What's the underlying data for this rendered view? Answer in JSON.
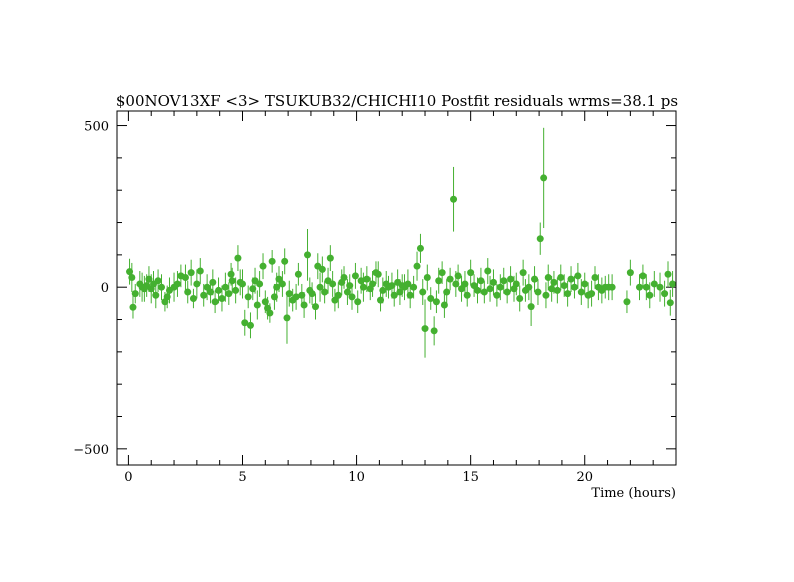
{
  "chart_data": {
    "type": "scatter",
    "title": "$00NOV13XF <3> TSUKUB32/CHICHI10 Postfit residuals wrms=38.1  ps",
    "xlabel": "Time (hours)",
    "ylabel": "",
    "xlim": [
      -0.5,
      24.0
    ],
    "ylim": [
      -550,
      545
    ],
    "x_ticks": [
      0,
      5,
      10,
      15,
      20
    ],
    "y_ticks": [
      -500,
      0,
      500
    ],
    "grid": false,
    "legend": "none",
    "colors": {
      "marker": "#44b030",
      "axis": "#000000"
    },
    "series": [
      {
        "points": [
          {
            "x": 0.05,
            "y": 48,
            "e": 40
          },
          {
            "x": 0.15,
            "y": 30,
            "e": 45
          },
          {
            "x": 0.2,
            "y": -62,
            "e": 35
          },
          {
            "x": 0.3,
            "y": -20,
            "e": 30
          },
          {
            "x": 0.5,
            "y": 10,
            "e": 40
          },
          {
            "x": 0.6,
            "y": 0,
            "e": 45
          },
          {
            "x": 0.7,
            "y": -5,
            "e": 40
          },
          {
            "x": 0.8,
            "y": 5,
            "e": 35
          },
          {
            "x": 0.9,
            "y": 25,
            "e": 40
          },
          {
            "x": 1.0,
            "y": -5,
            "e": 45
          },
          {
            "x": 1.1,
            "y": 10,
            "e": 40
          },
          {
            "x": 1.2,
            "y": -25,
            "e": 40
          },
          {
            "x": 1.3,
            "y": 20,
            "e": 35
          },
          {
            "x": 1.45,
            "y": 0,
            "e": 40
          },
          {
            "x": 1.6,
            "y": -45,
            "e": 30
          },
          {
            "x": 1.7,
            "y": -30,
            "e": 35
          },
          {
            "x": 1.8,
            "y": -10,
            "e": 40
          },
          {
            "x": 2.0,
            "y": 0,
            "e": 45
          },
          {
            "x": 2.15,
            "y": 10,
            "e": 40
          },
          {
            "x": 2.3,
            "y": 35,
            "e": 35
          },
          {
            "x": 2.5,
            "y": 30,
            "e": 40
          },
          {
            "x": 2.6,
            "y": -15,
            "e": 35
          },
          {
            "x": 2.75,
            "y": 45,
            "e": 40
          },
          {
            "x": 2.85,
            "y": -35,
            "e": 30
          },
          {
            "x": 3.0,
            "y": 10,
            "e": 45
          },
          {
            "x": 3.15,
            "y": 50,
            "e": 40
          },
          {
            "x": 3.3,
            "y": -25,
            "e": 35
          },
          {
            "x": 3.45,
            "y": 0,
            "e": 40
          },
          {
            "x": 3.6,
            "y": -15,
            "e": 35
          },
          {
            "x": 3.7,
            "y": 15,
            "e": 40
          },
          {
            "x": 3.8,
            "y": -45,
            "e": 35
          },
          {
            "x": 3.95,
            "y": -10,
            "e": 40
          },
          {
            "x": 4.1,
            "y": -35,
            "e": 40
          },
          {
            "x": 4.25,
            "y": 0,
            "e": 45
          },
          {
            "x": 4.4,
            "y": -20,
            "e": 35
          },
          {
            "x": 4.5,
            "y": 40,
            "e": 35
          },
          {
            "x": 4.55,
            "y": 20,
            "e": 40
          },
          {
            "x": 4.7,
            "y": -10,
            "e": 40
          },
          {
            "x": 4.8,
            "y": 90,
            "e": 40
          },
          {
            "x": 4.9,
            "y": 15,
            "e": 40
          },
          {
            "x": 5.0,
            "y": 10,
            "e": 45
          },
          {
            "x": 5.1,
            "y": -110,
            "e": 40
          },
          {
            "x": 5.25,
            "y": -30,
            "e": 35
          },
          {
            "x": 5.35,
            "y": -118,
            "e": 40
          },
          {
            "x": 5.45,
            "y": -5,
            "e": 35
          },
          {
            "x": 5.55,
            "y": 20,
            "e": 40
          },
          {
            "x": 5.65,
            "y": -55,
            "e": 45
          },
          {
            "x": 5.75,
            "y": 10,
            "e": 40
          },
          {
            "x": 5.9,
            "y": 65,
            "e": 40
          },
          {
            "x": 6.0,
            "y": -45,
            "e": 35
          },
          {
            "x": 6.1,
            "y": -65,
            "e": 35
          },
          {
            "x": 6.2,
            "y": -80,
            "e": 30
          },
          {
            "x": 6.3,
            "y": 80,
            "e": 35
          },
          {
            "x": 6.4,
            "y": -30,
            "e": 40
          },
          {
            "x": 6.5,
            "y": 0,
            "e": 45
          },
          {
            "x": 6.6,
            "y": 25,
            "e": 40
          },
          {
            "x": 6.75,
            "y": 10,
            "e": 40
          },
          {
            "x": 6.85,
            "y": 80,
            "e": 40
          },
          {
            "x": 6.95,
            "y": -95,
            "e": 80
          },
          {
            "x": 7.05,
            "y": -20,
            "e": 40
          },
          {
            "x": 7.2,
            "y": -40,
            "e": 35
          },
          {
            "x": 7.35,
            "y": -30,
            "e": 40
          },
          {
            "x": 7.45,
            "y": 40,
            "e": 35
          },
          {
            "x": 7.6,
            "y": -25,
            "e": 35
          },
          {
            "x": 7.7,
            "y": -55,
            "e": 40
          },
          {
            "x": 7.85,
            "y": 100,
            "e": 80
          },
          {
            "x": 7.95,
            "y": -10,
            "e": 40
          },
          {
            "x": 8.05,
            "y": -20,
            "e": 35
          },
          {
            "x": 8.2,
            "y": -60,
            "e": 40
          },
          {
            "x": 8.3,
            "y": 65,
            "e": 40
          },
          {
            "x": 8.4,
            "y": 0,
            "e": 45
          },
          {
            "x": 8.5,
            "y": 55,
            "e": 40
          },
          {
            "x": 8.6,
            "y": -15,
            "e": 35
          },
          {
            "x": 8.75,
            "y": 20,
            "e": 40
          },
          {
            "x": 8.85,
            "y": 90,
            "e": 40
          },
          {
            "x": 8.95,
            "y": 10,
            "e": 40
          },
          {
            "x": 9.05,
            "y": -40,
            "e": 35
          },
          {
            "x": 9.2,
            "y": -25,
            "e": 40
          },
          {
            "x": 9.35,
            "y": 15,
            "e": 40
          },
          {
            "x": 9.45,
            "y": 30,
            "e": 35
          },
          {
            "x": 9.6,
            "y": -15,
            "e": 40
          },
          {
            "x": 9.7,
            "y": 5,
            "e": 35
          },
          {
            "x": 9.8,
            "y": -30,
            "e": 40
          },
          {
            "x": 9.95,
            "y": 35,
            "e": 40
          },
          {
            "x": 10.05,
            "y": -45,
            "e": 35
          },
          {
            "x": 10.2,
            "y": 20,
            "e": 40
          },
          {
            "x": 10.3,
            "y": 0,
            "e": 45
          },
          {
            "x": 10.45,
            "y": 25,
            "e": 40
          },
          {
            "x": 10.6,
            "y": -5,
            "e": 35
          },
          {
            "x": 10.7,
            "y": 10,
            "e": 40
          },
          {
            "x": 10.85,
            "y": 45,
            "e": 35
          },
          {
            "x": 10.95,
            "y": 40,
            "e": 40
          },
          {
            "x": 11.05,
            "y": -40,
            "e": 35
          },
          {
            "x": 11.15,
            "y": -10,
            "e": 40
          },
          {
            "x": 11.3,
            "y": 10,
            "e": 40
          },
          {
            "x": 11.4,
            "y": 0,
            "e": 35
          },
          {
            "x": 11.55,
            "y": 5,
            "e": 40
          },
          {
            "x": 11.65,
            "y": -25,
            "e": 35
          },
          {
            "x": 11.8,
            "y": 15,
            "e": 40
          },
          {
            "x": 11.9,
            "y": -15,
            "e": 40
          },
          {
            "x": 12.0,
            "y": 5,
            "e": 35
          },
          {
            "x": 12.1,
            "y": 0,
            "e": 40
          },
          {
            "x": 12.25,
            "y": 10,
            "e": 45
          },
          {
            "x": 12.35,
            "y": -25,
            "e": 40
          },
          {
            "x": 12.5,
            "y": 0,
            "e": 35
          },
          {
            "x": 12.65,
            "y": 65,
            "e": 45
          },
          {
            "x": 12.8,
            "y": 120,
            "e": 45
          },
          {
            "x": 12.9,
            "y": -15,
            "e": 40
          },
          {
            "x": 13.0,
            "y": -128,
            "e": 90
          },
          {
            "x": 13.1,
            "y": 30,
            "e": 40
          },
          {
            "x": 13.25,
            "y": -35,
            "e": 35
          },
          {
            "x": 13.4,
            "y": -135,
            "e": 45
          },
          {
            "x": 13.5,
            "y": -45,
            "e": 35
          },
          {
            "x": 13.6,
            "y": 20,
            "e": 40
          },
          {
            "x": 13.75,
            "y": 45,
            "e": 35
          },
          {
            "x": 13.85,
            "y": -55,
            "e": 40
          },
          {
            "x": 13.95,
            "y": -15,
            "e": 40
          },
          {
            "x": 14.1,
            "y": 25,
            "e": 35
          },
          {
            "x": 14.25,
            "y": 272,
            "e": 100
          },
          {
            "x": 14.35,
            "y": 10,
            "e": 40
          },
          {
            "x": 14.45,
            "y": 35,
            "e": 35
          },
          {
            "x": 14.6,
            "y": -5,
            "e": 40
          },
          {
            "x": 14.75,
            "y": 10,
            "e": 40
          },
          {
            "x": 14.85,
            "y": -25,
            "e": 35
          },
          {
            "x": 15.0,
            "y": 45,
            "e": 40
          },
          {
            "x": 15.15,
            "y": 5,
            "e": 35
          },
          {
            "x": 15.3,
            "y": -10,
            "e": 40
          },
          {
            "x": 15.45,
            "y": 20,
            "e": 40
          },
          {
            "x": 15.6,
            "y": -15,
            "e": 35
          },
          {
            "x": 15.75,
            "y": 50,
            "e": 40
          },
          {
            "x": 15.85,
            "y": -5,
            "e": 40
          },
          {
            "x": 16.0,
            "y": 15,
            "e": 40
          },
          {
            "x": 16.15,
            "y": -25,
            "e": 35
          },
          {
            "x": 16.3,
            "y": 0,
            "e": 40
          },
          {
            "x": 16.45,
            "y": 20,
            "e": 40
          },
          {
            "x": 16.6,
            "y": -15,
            "e": 35
          },
          {
            "x": 16.75,
            "y": 25,
            "e": 40
          },
          {
            "x": 16.9,
            "y": -5,
            "e": 40
          },
          {
            "x": 17.0,
            "y": 10,
            "e": 35
          },
          {
            "x": 17.15,
            "y": -35,
            "e": 40
          },
          {
            "x": 17.3,
            "y": 45,
            "e": 40
          },
          {
            "x": 17.4,
            "y": -10,
            "e": 35
          },
          {
            "x": 17.55,
            "y": 0,
            "e": 40
          },
          {
            "x": 17.65,
            "y": -60,
            "e": 60
          },
          {
            "x": 17.8,
            "y": 25,
            "e": 40
          },
          {
            "x": 17.95,
            "y": -15,
            "e": 40
          },
          {
            "x": 18.05,
            "y": 150,
            "e": 50
          },
          {
            "x": 18.2,
            "y": 338,
            "e": 155
          },
          {
            "x": 18.3,
            "y": -25,
            "e": 40
          },
          {
            "x": 18.4,
            "y": 30,
            "e": 40
          },
          {
            "x": 18.55,
            "y": -5,
            "e": 40
          },
          {
            "x": 18.65,
            "y": 15,
            "e": 35
          },
          {
            "x": 18.8,
            "y": -10,
            "e": 40
          },
          {
            "x": 18.95,
            "y": 30,
            "e": 40
          },
          {
            "x": 19.1,
            "y": 5,
            "e": 35
          },
          {
            "x": 19.25,
            "y": -20,
            "e": 40
          },
          {
            "x": 19.4,
            "y": 25,
            "e": 40
          },
          {
            "x": 19.55,
            "y": 0,
            "e": 35
          },
          {
            "x": 19.7,
            "y": 35,
            "e": 40
          },
          {
            "x": 19.85,
            "y": -15,
            "e": 40
          },
          {
            "x": 20.0,
            "y": 10,
            "e": 35
          },
          {
            "x": 20.15,
            "y": -25,
            "e": 40
          },
          {
            "x": 20.3,
            "y": -20,
            "e": 40
          },
          {
            "x": 20.45,
            "y": 30,
            "e": 35
          },
          {
            "x": 20.6,
            "y": 0,
            "e": 40
          },
          {
            "x": 20.75,
            "y": -10,
            "e": 40
          },
          {
            "x": 20.9,
            "y": 0,
            "e": 35
          },
          {
            "x": 21.05,
            "y": 0,
            "e": 40
          },
          {
            "x": 21.2,
            "y": 0,
            "e": 40
          },
          {
            "x": 21.85,
            "y": -45,
            "e": 35
          },
          {
            "x": 22.0,
            "y": 45,
            "e": 40
          },
          {
            "x": 22.4,
            "y": 0,
            "e": 40
          },
          {
            "x": 22.55,
            "y": 35,
            "e": 35
          },
          {
            "x": 22.7,
            "y": 0,
            "e": 40
          },
          {
            "x": 22.85,
            "y": -25,
            "e": 40
          },
          {
            "x": 23.05,
            "y": 10,
            "e": 40
          },
          {
            "x": 23.3,
            "y": 0,
            "e": 45
          },
          {
            "x": 23.5,
            "y": -20,
            "e": 40
          },
          {
            "x": 23.65,
            "y": 40,
            "e": 40
          },
          {
            "x": 23.75,
            "y": -48,
            "e": 40
          },
          {
            "x": 23.85,
            "y": 10,
            "e": 40
          }
        ]
      }
    ]
  }
}
